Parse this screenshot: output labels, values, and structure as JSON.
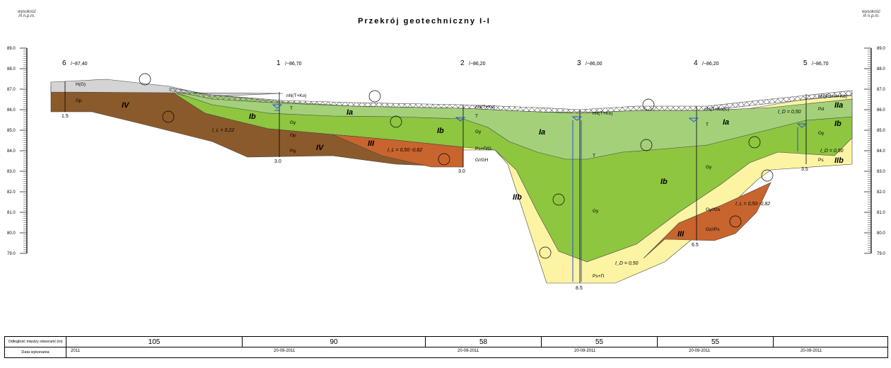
{
  "title": "Przekrój geotechniczny I-I",
  "axis_header": "wysokość\nm n.p.m.",
  "elevation_ticks": [
    "89.0",
    "88.0",
    "87.0",
    "86.0",
    "85.0",
    "84.0",
    "83.0",
    "82.0",
    "81.0",
    "80.0",
    "79.0"
  ],
  "boreholes": [
    {
      "no": "6",
      "elev": "/~87,40",
      "depth": "1.5"
    },
    {
      "no": "1",
      "elev": "/~86,70",
      "depth": "3.0"
    },
    {
      "no": "2",
      "elev": "/~86,20",
      "depth": "3.0"
    },
    {
      "no": "3",
      "elev": "/~86,00",
      "depth": "8.5"
    },
    {
      "no": "4",
      "elev": "/~86,20",
      "depth": "6.5"
    },
    {
      "no": "5",
      "elev": "/~86,70",
      "depth": "3.5"
    }
  ],
  "layers": {
    "Ia": "Ia",
    "Ib": "Ib",
    "IIa": "IIa",
    "IIb": "IIb",
    "III": "III",
    "IV": "IV"
  },
  "soil_labels": {
    "hg": "H(G)",
    "gp": "Gp",
    "nn_tko": "nN(T+Ko)",
    "t": "T",
    "gy": "Gy",
    "gp2": "Gp",
    "pg": "Pg",
    "nn_tko2": "nN(T+Ko)",
    "ps_iig": "Ps+Π/G",
    "gagh": "G//GH",
    "nn_tko3": "nN(T+Ko)",
    "nn_tkoc": "nN(T+Ko(C)",
    "gygs": "Gy//Gs",
    "gzps": "Gz//Ps",
    "nn_pdhko": "nN(Pd+H+Ko)",
    "pd": "Pd",
    "ps": "Ps",
    "ps_pi": "Ps+Π",
    "gy3": "Gy",
    "gy4": "Gy",
    "gy5": "Gy",
    "t3": "T",
    "t4": "T"
  },
  "params": {
    "il_022": "I_L = 0,22",
    "il_050_082": "I_L = 0,50 -0,82",
    "il_050_082b": "I_L = 0,50 -0,82",
    "id_050a": "I_D = 0,50",
    "id_050b": "I_D = 0,50",
    "id_050c": "I_D = 0,50"
  },
  "table": {
    "row1_label": "Odległość między otworami (m)",
    "row2_label": "Data wykonania",
    "distances": [
      "105",
      "90",
      "58",
      "55",
      "55"
    ],
    "dates": [
      "2011",
      "20-09-2011",
      "20-09-2011",
      "20-09-2011",
      "20-09-2011",
      "20-09-2011"
    ]
  },
  "colors": {
    "fill_grey": "#d4d4d4",
    "brown": "#8b5a2b",
    "light_green": "#a4d07a",
    "green": "#8ec63f",
    "yellow": "#fcf4a3",
    "orange": "#c8642e",
    "water": "#2b4fd6"
  }
}
